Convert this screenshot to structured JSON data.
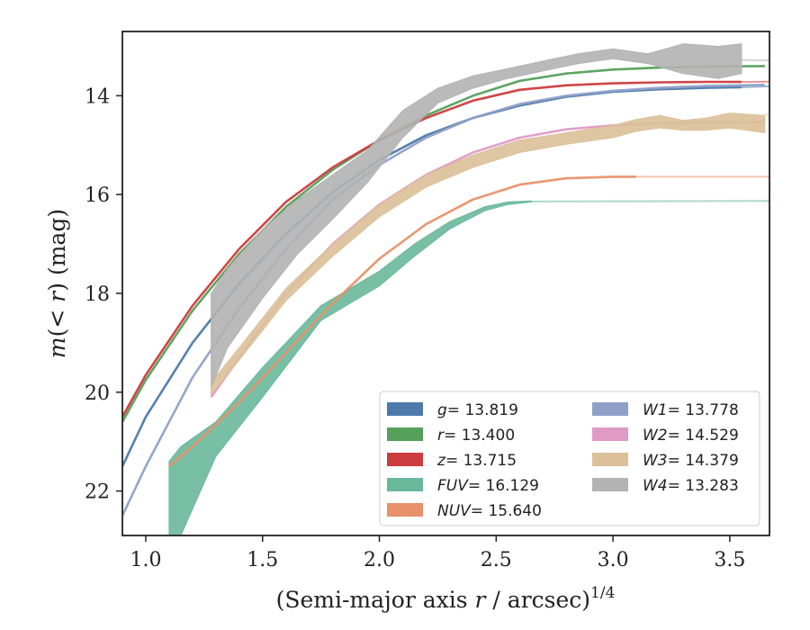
{
  "chart_data": {
    "type": "line",
    "xlabel": "(Semi-major axis r / arcsec)1/4",
    "xlabel_main": "(Semi-major axis ",
    "xlabel_r": "r",
    "xlabel_mid": " / arcsec)",
    "xlabel_sup": "1/4",
    "ylabel": "m(< r) (mag)",
    "ylabel_m": "m",
    "ylabel_lt": "(< ",
    "ylabel_r": "r",
    "ylabel_end": ") (mag)",
    "xlim": [
      0.9,
      3.67
    ],
    "ylim": [
      22.9,
      12.7
    ],
    "y_inverted": true,
    "xticks": [
      1.0,
      1.5,
      2.0,
      2.5,
      3.0,
      3.5
    ],
    "xtick_labels": [
      "1.0",
      "1.5",
      "2.0",
      "2.5",
      "3.0",
      "3.5"
    ],
    "yticks": [
      14,
      16,
      18,
      20,
      22
    ],
    "ytick_labels": [
      "14",
      "16",
      "18",
      "20",
      "22"
    ],
    "grid": false,
    "legend_position": "lower-right",
    "series": [
      {
        "name": "g",
        "label_value": "13.819",
        "color": "#4c7bab",
        "band": false,
        "x": [
          0.9,
          1.0,
          1.2,
          1.4,
          1.6,
          1.8,
          2.0,
          2.2,
          2.4,
          2.6,
          2.8,
          3.0,
          3.2,
          3.4,
          3.55
        ],
        "y": [
          21.5,
          20.5,
          19.0,
          17.8,
          16.8,
          15.95,
          15.3,
          14.8,
          14.45,
          14.2,
          14.02,
          13.92,
          13.87,
          13.84,
          13.83
        ],
        "ext_x": [
          3.55,
          3.67
        ],
        "ext_y": [
          13.83,
          13.81
        ]
      },
      {
        "name": "r",
        "label_value": "13.400",
        "color": "#55a05a",
        "band": false,
        "x": [
          0.9,
          1.0,
          1.2,
          1.4,
          1.6,
          1.8,
          2.0,
          2.2,
          2.4,
          2.6,
          2.8,
          3.0,
          3.2,
          3.4,
          3.65
        ],
        "y": [
          20.6,
          19.75,
          18.35,
          17.2,
          16.25,
          15.5,
          14.9,
          14.4,
          14.0,
          13.7,
          13.55,
          13.47,
          13.43,
          13.41,
          13.4
        ]
      },
      {
        "name": "z",
        "label_value": "13.715",
        "color": "#cc3c3e",
        "band": false,
        "x": [
          0.9,
          1.0,
          1.2,
          1.4,
          1.6,
          1.8,
          2.0,
          2.2,
          2.4,
          2.6,
          2.8,
          3.0,
          3.2,
          3.4,
          3.55
        ],
        "y": [
          20.5,
          19.65,
          18.25,
          17.1,
          16.15,
          15.45,
          14.9,
          14.45,
          14.1,
          13.88,
          13.79,
          13.75,
          13.73,
          13.72,
          13.72
        ],
        "ext_x": [
          3.55,
          3.67
        ],
        "ext_y": [
          13.72,
          13.715
        ]
      },
      {
        "name": "FUV",
        "label_value": "16.129",
        "color": "#69b89c",
        "band": true,
        "x": [
          1.1,
          1.15,
          1.3,
          1.5,
          1.75,
          2.0,
          2.15,
          2.3,
          2.45,
          2.55,
          2.65
        ],
        "y_upper": [
          21.4,
          21.1,
          20.6,
          19.5,
          18.25,
          17.55,
          17.0,
          16.55,
          16.25,
          16.15,
          16.13
        ],
        "y_lower": [
          22.9,
          22.9,
          21.3,
          20.1,
          18.55,
          17.85,
          17.25,
          16.7,
          16.33,
          16.2,
          16.15
        ],
        "ext_x": [
          2.65,
          3.67
        ],
        "ext_y": [
          16.14,
          16.129
        ]
      },
      {
        "name": "NUV",
        "label_value": "15.640",
        "color": "#e8916a",
        "band": false,
        "x": [
          1.1,
          1.2,
          1.4,
          1.6,
          1.8,
          2.0,
          2.2,
          2.4,
          2.6,
          2.8,
          3.0,
          3.1
        ],
        "y": [
          21.5,
          21.1,
          20.2,
          19.2,
          18.2,
          17.3,
          16.6,
          16.1,
          15.8,
          15.67,
          15.64,
          15.64
        ],
        "ext_x": [
          3.1,
          3.67
        ],
        "ext_y": [
          15.64,
          15.64
        ]
      },
      {
        "name": "W1",
        "label_value": "13.778",
        "color": "#8fa0c8",
        "band": false,
        "x": [
          0.9,
          1.0,
          1.2,
          1.4,
          1.6,
          1.8,
          2.0,
          2.2,
          2.4,
          2.6,
          2.8,
          3.0,
          3.2,
          3.4,
          3.65
        ],
        "y": [
          22.5,
          21.5,
          19.7,
          18.3,
          17.1,
          16.1,
          15.4,
          14.85,
          14.45,
          14.17,
          14.0,
          13.9,
          13.84,
          13.8,
          13.78
        ]
      },
      {
        "name": "W2",
        "label_value": "14.529",
        "color": "#e09ac6",
        "band": false,
        "x": [
          1.28,
          1.4,
          1.6,
          1.8,
          2.0,
          2.2,
          2.4,
          2.6,
          2.8,
          3.0,
          3.2,
          3.4,
          3.65
        ],
        "y": [
          20.1,
          19.3,
          18.0,
          17.0,
          16.2,
          15.6,
          15.15,
          14.85,
          14.68,
          14.6,
          14.56,
          14.54,
          14.53
        ]
      },
      {
        "name": "W3",
        "label_value": "14.379",
        "color": "#dcc099",
        "band": true,
        "x": [
          1.28,
          1.4,
          1.6,
          1.8,
          2.0,
          2.2,
          2.4,
          2.6,
          2.8,
          3.0,
          3.1,
          3.2,
          3.3,
          3.4,
          3.5,
          3.65
        ],
        "y_upper": [
          19.8,
          19.1,
          17.9,
          17.0,
          16.2,
          15.6,
          15.2,
          14.9,
          14.75,
          14.6,
          14.48,
          14.4,
          14.5,
          14.45,
          14.35,
          14.4
        ],
        "y_lower": [
          20.05,
          19.35,
          18.15,
          17.25,
          16.45,
          15.85,
          15.45,
          15.15,
          14.98,
          14.85,
          14.72,
          14.65,
          14.7,
          14.7,
          14.65,
          14.75
        ],
        "ext_x": [
          3.65,
          3.67
        ],
        "ext_y": [
          14.38,
          14.379
        ]
      },
      {
        "name": "W4",
        "label_value": "13.283",
        "color": "#b3b3b3",
        "band": true,
        "x": [
          1.28,
          1.35,
          1.5,
          1.65,
          1.8,
          1.95,
          2.1,
          2.25,
          2.4,
          2.55,
          2.7,
          2.85,
          3.0,
          3.15,
          3.3,
          3.45,
          3.55
        ],
        "y_upper": [
          18.0,
          17.5,
          16.7,
          16.1,
          15.6,
          15.1,
          14.3,
          13.85,
          13.6,
          13.45,
          13.3,
          13.15,
          13.05,
          13.15,
          12.95,
          13.0,
          12.95
        ],
        "y_lower": [
          19.9,
          19.1,
          18.1,
          17.2,
          16.5,
          15.75,
          14.85,
          14.15,
          13.85,
          13.65,
          13.5,
          13.35,
          13.25,
          13.35,
          13.55,
          13.65,
          13.55
        ],
        "ext_x": [
          3.55,
          3.67
        ],
        "ext_y": [
          13.28,
          13.283
        ]
      }
    ],
    "legend": {
      "col1": [
        {
          "name": "g",
          "eq": "= 13.819",
          "color": "#4c7bab"
        },
        {
          "name": "r",
          "eq": "= 13.400",
          "color": "#55a05a"
        },
        {
          "name": "z",
          "eq": "= 13.715",
          "color": "#cc3c3e"
        },
        {
          "name": "FUV",
          "eq": "= 16.129",
          "color": "#69b89c"
        },
        {
          "name": "NUV",
          "eq": "= 15.640",
          "color": "#e8916a"
        }
      ],
      "col2": [
        {
          "name": "W1",
          "eq": "= 13.778",
          "color": "#8fa0c8"
        },
        {
          "name": "W2",
          "eq": "= 14.529",
          "color": "#e09ac6"
        },
        {
          "name": "W3",
          "eq": "= 14.379",
          "color": "#dcc099"
        },
        {
          "name": "W4",
          "eq": "= 13.283",
          "color": "#b3b3b3"
        }
      ]
    }
  }
}
